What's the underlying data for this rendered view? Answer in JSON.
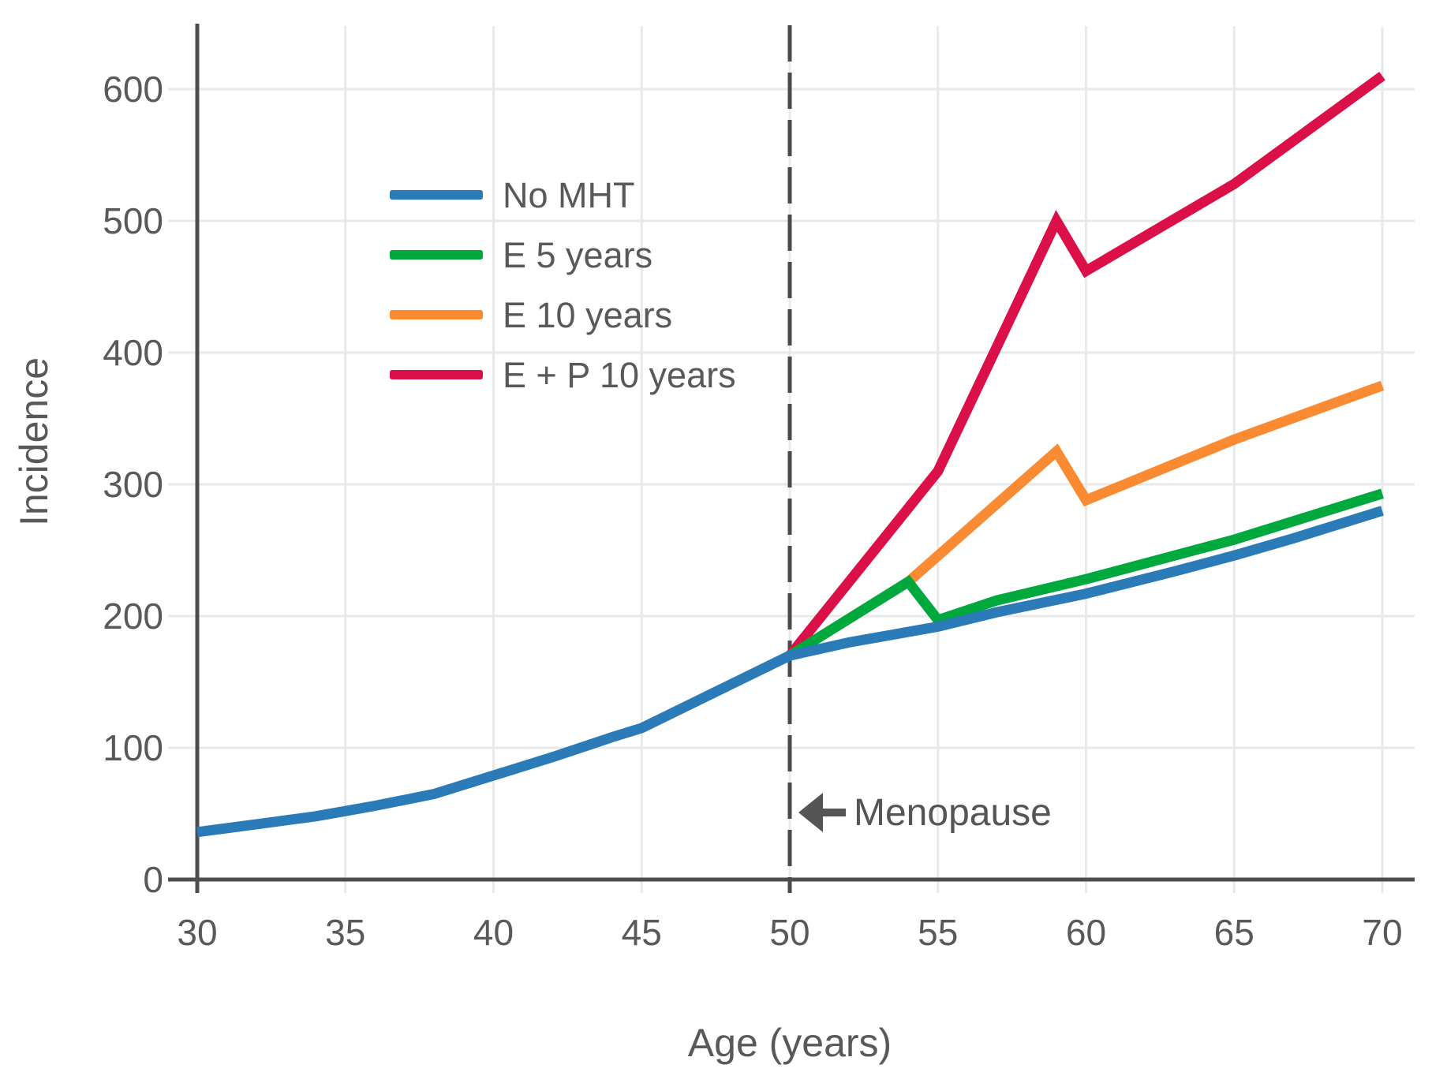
{
  "chart_data": {
    "type": "line",
    "title": "",
    "xlabel": "Age (years)",
    "ylabel": "Incidence",
    "xlim": [
      30,
      71
    ],
    "ylim": [
      0,
      650
    ],
    "xticks": [
      30,
      35,
      40,
      45,
      50,
      55,
      60,
      65,
      70
    ],
    "yticks": [
      0,
      100,
      200,
      300,
      400,
      500,
      600
    ],
    "grid": true,
    "legend_position": "upper-left-inside",
    "annotation": "Menopause",
    "menopause_line_x": 50,
    "colors": {
      "axis": "#4d4d4d",
      "gridline": "#e9e9e9",
      "tick_text": "#595959",
      "dashed_line": "#4a4a4a",
      "annotation": "#555555"
    },
    "series": [
      {
        "name": "No MHT",
        "color": "#2b7bb9",
        "points": [
          [
            30,
            36
          ],
          [
            32,
            42
          ],
          [
            34,
            48
          ],
          [
            35,
            52
          ],
          [
            36,
            56
          ],
          [
            38,
            65
          ],
          [
            40,
            79
          ],
          [
            42,
            93
          ],
          [
            44,
            108
          ],
          [
            45,
            115
          ],
          [
            47,
            137
          ],
          [
            48,
            148
          ],
          [
            50,
            170
          ],
          [
            52,
            180
          ],
          [
            55,
            192
          ],
          [
            57,
            203
          ],
          [
            60,
            217
          ],
          [
            63,
            234
          ],
          [
            65,
            246
          ],
          [
            67,
            259
          ],
          [
            70,
            280
          ]
        ]
      },
      {
        "name": "E 5 years",
        "color": "#00a93e",
        "points": [
          [
            50,
            170
          ],
          [
            54,
            226
          ],
          [
            55,
            197
          ],
          [
            57,
            212
          ],
          [
            60,
            228
          ],
          [
            65,
            258
          ],
          [
            70,
            293
          ]
        ]
      },
      {
        "name": "E 10 years",
        "color": "#fb8b32",
        "points": [
          [
            50,
            170
          ],
          [
            54,
            226
          ],
          [
            59,
            325
          ],
          [
            60,
            288
          ],
          [
            65,
            334
          ],
          [
            70,
            375
          ]
        ]
      },
      {
        "name": "E + P 10 years",
        "color": "#dc1049",
        "points": [
          [
            50,
            170
          ],
          [
            55,
            310
          ],
          [
            59,
            500
          ],
          [
            60,
            462
          ],
          [
            65,
            528
          ],
          [
            70,
            610
          ]
        ]
      }
    ]
  }
}
